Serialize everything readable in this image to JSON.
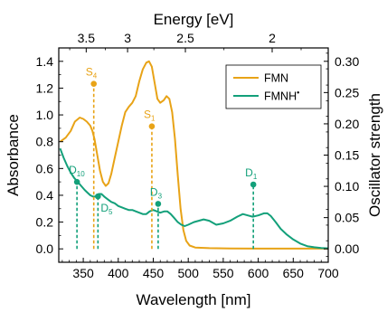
{
  "chart_data": {
    "type": "line",
    "xlabel": "Wavelength [nm]",
    "x_ticks": [
      350,
      400,
      450,
      500,
      550,
      600,
      650,
      700
    ],
    "xlim": [
      315,
      700
    ],
    "ylabel": "Absorbance",
    "y_ticks": [
      "0.0",
      "0.2",
      "0.4",
      "0.6",
      "0.8",
      "1.0",
      "1.2",
      "1.4"
    ],
    "ylim": [
      -0.1,
      1.5
    ],
    "y2label": "Oscillator strength",
    "y2_ticks": [
      "0.00",
      "0.05",
      "0.10",
      "0.15",
      "0.20",
      "0.25",
      "0.30"
    ],
    "y2lim": [
      -0.0214,
      0.3214
    ],
    "top_axis_label": "Energy [eV]",
    "top_ticks": [
      {
        "label": "3.5",
        "wavelength": 354.2
      },
      {
        "label": "3",
        "wavelength": 413.3
      },
      {
        "label": "2.5",
        "wavelength": 495.9
      },
      {
        "label": "2",
        "wavelength": 619.9
      }
    ],
    "legend_position": "top-right",
    "series": [
      {
        "name": "FMN",
        "color": "#E8A317",
        "points": [
          [
            317,
            0.8
          ],
          [
            325,
            0.83
          ],
          [
            332,
            0.88
          ],
          [
            338,
            0.95
          ],
          [
            345,
            0.98
          ],
          [
            350,
            0.97
          ],
          [
            355,
            0.95
          ],
          [
            360,
            0.92
          ],
          [
            363,
            0.88
          ],
          [
            366,
            0.82
          ],
          [
            370,
            0.7
          ],
          [
            374,
            0.58
          ],
          [
            378,
            0.5
          ],
          [
            382,
            0.47
          ],
          [
            386,
            0.49
          ],
          [
            390,
            0.56
          ],
          [
            395,
            0.68
          ],
          [
            400,
            0.8
          ],
          [
            405,
            0.92
          ],
          [
            410,
            1.02
          ],
          [
            415,
            1.06
          ],
          [
            420,
            1.09
          ],
          [
            425,
            1.14
          ],
          [
            430,
            1.25
          ],
          [
            435,
            1.34
          ],
          [
            440,
            1.39
          ],
          [
            444,
            1.4
          ],
          [
            448,
            1.36
          ],
          [
            452,
            1.24
          ],
          [
            456,
            1.12
          ],
          [
            460,
            1.09
          ],
          [
            465,
            1.11
          ],
          [
            469,
            1.14
          ],
          [
            473,
            1.12
          ],
          [
            477,
            1.02
          ],
          [
            481,
            0.82
          ],
          [
            485,
            0.55
          ],
          [
            489,
            0.3
          ],
          [
            493,
            0.14
          ],
          [
            497,
            0.06
          ],
          [
            502,
            0.025
          ],
          [
            510,
            0.01
          ],
          [
            530,
            0.005
          ],
          [
            560,
            0.003
          ],
          [
            600,
            0.002
          ],
          [
            650,
            0.002
          ],
          [
            700,
            0.002
          ]
        ]
      },
      {
        "name": "FMNH•",
        "legend_superscript": "•",
        "color": "#13A07A",
        "points": [
          [
            317,
            0.75
          ],
          [
            322,
            0.68
          ],
          [
            327,
            0.62
          ],
          [
            332,
            0.57
          ],
          [
            337,
            0.53
          ],
          [
            342,
            0.5
          ],
          [
            347,
            0.47
          ],
          [
            352,
            0.44
          ],
          [
            356,
            0.42
          ],
          [
            360,
            0.4
          ],
          [
            364,
            0.39
          ],
          [
            368,
            0.39
          ],
          [
            372,
            0.41
          ],
          [
            376,
            0.41
          ],
          [
            380,
            0.39
          ],
          [
            385,
            0.37
          ],
          [
            390,
            0.35
          ],
          [
            395,
            0.34
          ],
          [
            400,
            0.32
          ],
          [
            405,
            0.31
          ],
          [
            410,
            0.3
          ],
          [
            415,
            0.29
          ],
          [
            420,
            0.29
          ],
          [
            425,
            0.28
          ],
          [
            430,
            0.27
          ],
          [
            435,
            0.26
          ],
          [
            440,
            0.26
          ],
          [
            445,
            0.28
          ],
          [
            450,
            0.29
          ],
          [
            455,
            0.28
          ],
          [
            460,
            0.27
          ],
          [
            466,
            0.28
          ],
          [
            470,
            0.28
          ],
          [
            475,
            0.26
          ],
          [
            480,
            0.23
          ],
          [
            485,
            0.2
          ],
          [
            490,
            0.18
          ],
          [
            495,
            0.17
          ],
          [
            500,
            0.18
          ],
          [
            508,
            0.2
          ],
          [
            515,
            0.21
          ],
          [
            522,
            0.22
          ],
          [
            530,
            0.21
          ],
          [
            540,
            0.18
          ],
          [
            550,
            0.19
          ],
          [
            560,
            0.21
          ],
          [
            570,
            0.24
          ],
          [
            578,
            0.26
          ],
          [
            585,
            0.25
          ],
          [
            592,
            0.24
          ],
          [
            600,
            0.25
          ],
          [
            608,
            0.265
          ],
          [
            613,
            0.265
          ],
          [
            618,
            0.245
          ],
          [
            625,
            0.2
          ],
          [
            632,
            0.15
          ],
          [
            640,
            0.11
          ],
          [
            650,
            0.07
          ],
          [
            660,
            0.04
          ],
          [
            670,
            0.02
          ],
          [
            680,
            0.012
          ],
          [
            690,
            0.006
          ],
          [
            700,
            0.004
          ]
        ]
      }
    ],
    "transitions": [
      {
        "label": "S",
        "sub": "4",
        "color": "#E8A317",
        "wavelength": 365,
        "osc": 0.264,
        "label_pos": "above"
      },
      {
        "label": "S",
        "sub": "1",
        "color": "#E8A317",
        "wavelength": 448,
        "osc": 0.196,
        "label_pos": "above"
      },
      {
        "label": "D",
        "sub": "10",
        "color": "#13A07A",
        "wavelength": 341,
        "osc": 0.107,
        "label_pos": "above"
      },
      {
        "label": "D",
        "sub": "5",
        "color": "#13A07A",
        "wavelength": 371,
        "osc": 0.084,
        "label_pos": "below-right"
      },
      {
        "label": "D",
        "sub": "3",
        "color": "#13A07A",
        "wavelength": 457,
        "osc": 0.072,
        "label_pos": "above"
      },
      {
        "label": "D",
        "sub": "1",
        "color": "#13A07A",
        "wavelength": 593,
        "osc": 0.103,
        "label_pos": "above"
      }
    ]
  }
}
